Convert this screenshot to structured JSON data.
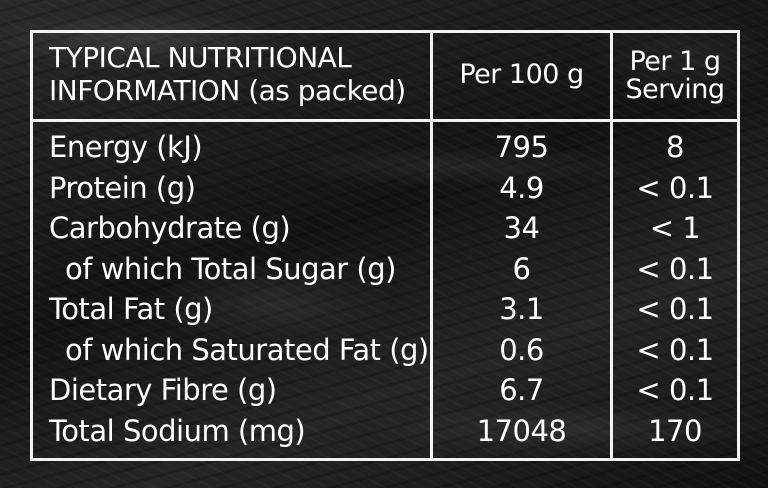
{
  "header": {
    "title": "TYPICAL NUTRITIONAL\nINFORMATION (as packed)",
    "col_per_100g": "Per 100 g",
    "col_per_serving": "Per 1 g\nServing"
  },
  "rows": [
    {
      "label": "Energy (kJ)",
      "per100": "795",
      "serving": "8",
      "indent": false
    },
    {
      "label": "Protein (g)",
      "per100": "4.9",
      "serving": "< 0.1",
      "indent": false
    },
    {
      "label": "Carbohydrate (g)",
      "per100": "34",
      "serving": "< 1",
      "indent": false
    },
    {
      "label": "of which Total Sugar (g)",
      "per100": "6",
      "serving": "< 0.1",
      "indent": true
    },
    {
      "label": "Total Fat (g)",
      "per100": "3.1",
      "serving": "< 0.1",
      "indent": false
    },
    {
      "label": "of which Saturated Fat (g)",
      "per100": "0.6",
      "serving": "< 0.1",
      "indent": true
    },
    {
      "label": "Dietary Fibre (g)",
      "per100": "6.7",
      "serving": "< 0.1",
      "indent": false
    },
    {
      "label": "Total Sodium (mg)",
      "per100": "17048",
      "serving": "170",
      "indent": false
    }
  ],
  "colors": {
    "background": "#1d1d1d",
    "text": "#ffffff",
    "border": "#f2f2f2"
  }
}
